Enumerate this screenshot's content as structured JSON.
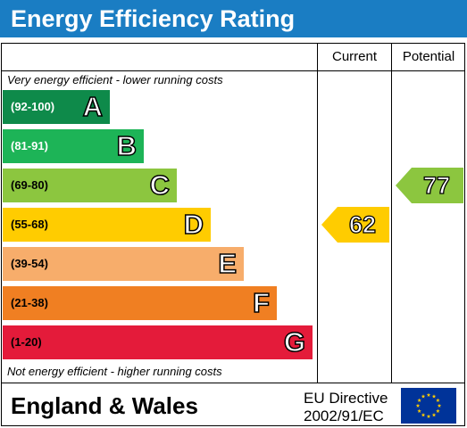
{
  "title": "Energy Efficiency Rating",
  "columns": {
    "current": "Current",
    "potential": "Potential"
  },
  "top_note": "Very energy efficient - lower running costs",
  "bottom_note": "Not energy efficient - higher running costs",
  "bands": [
    {
      "range": "(92-100)",
      "letter": "A",
      "color": "#0e8a4a",
      "range_color": "#ffffff"
    },
    {
      "range": "(81-91)",
      "letter": "B",
      "color": "#1db457",
      "range_color": "#ffffff"
    },
    {
      "range": "(69-80)",
      "letter": "C",
      "color": "#8cc63f",
      "range_color": "#000000"
    },
    {
      "range": "(55-68)",
      "letter": "D",
      "color": "#ffcc00",
      "range_color": "#000000"
    },
    {
      "range": "(39-54)",
      "letter": "E",
      "color": "#f7ad6b",
      "range_color": "#000000"
    },
    {
      "range": "(21-38)",
      "letter": "F",
      "color": "#f07f22",
      "range_color": "#000000"
    },
    {
      "range": "(1-20)",
      "letter": "G",
      "color": "#e41b3a",
      "range_color": "#000000"
    }
  ],
  "current": {
    "value": "62",
    "band": "D",
    "color": "#ffcc00"
  },
  "potential": {
    "value": "77",
    "band": "C",
    "color": "#8cc63f"
  },
  "footer": {
    "region": "England & Wales",
    "directive_line1": "EU Directive",
    "directive_line2": "2002/91/EC"
  },
  "colors": {
    "title_bar": "#1a7dc3",
    "flag_blue": "#003399",
    "flag_stars": "#ffcc00"
  },
  "icons": {
    "flag": "eu-flag-icon"
  }
}
